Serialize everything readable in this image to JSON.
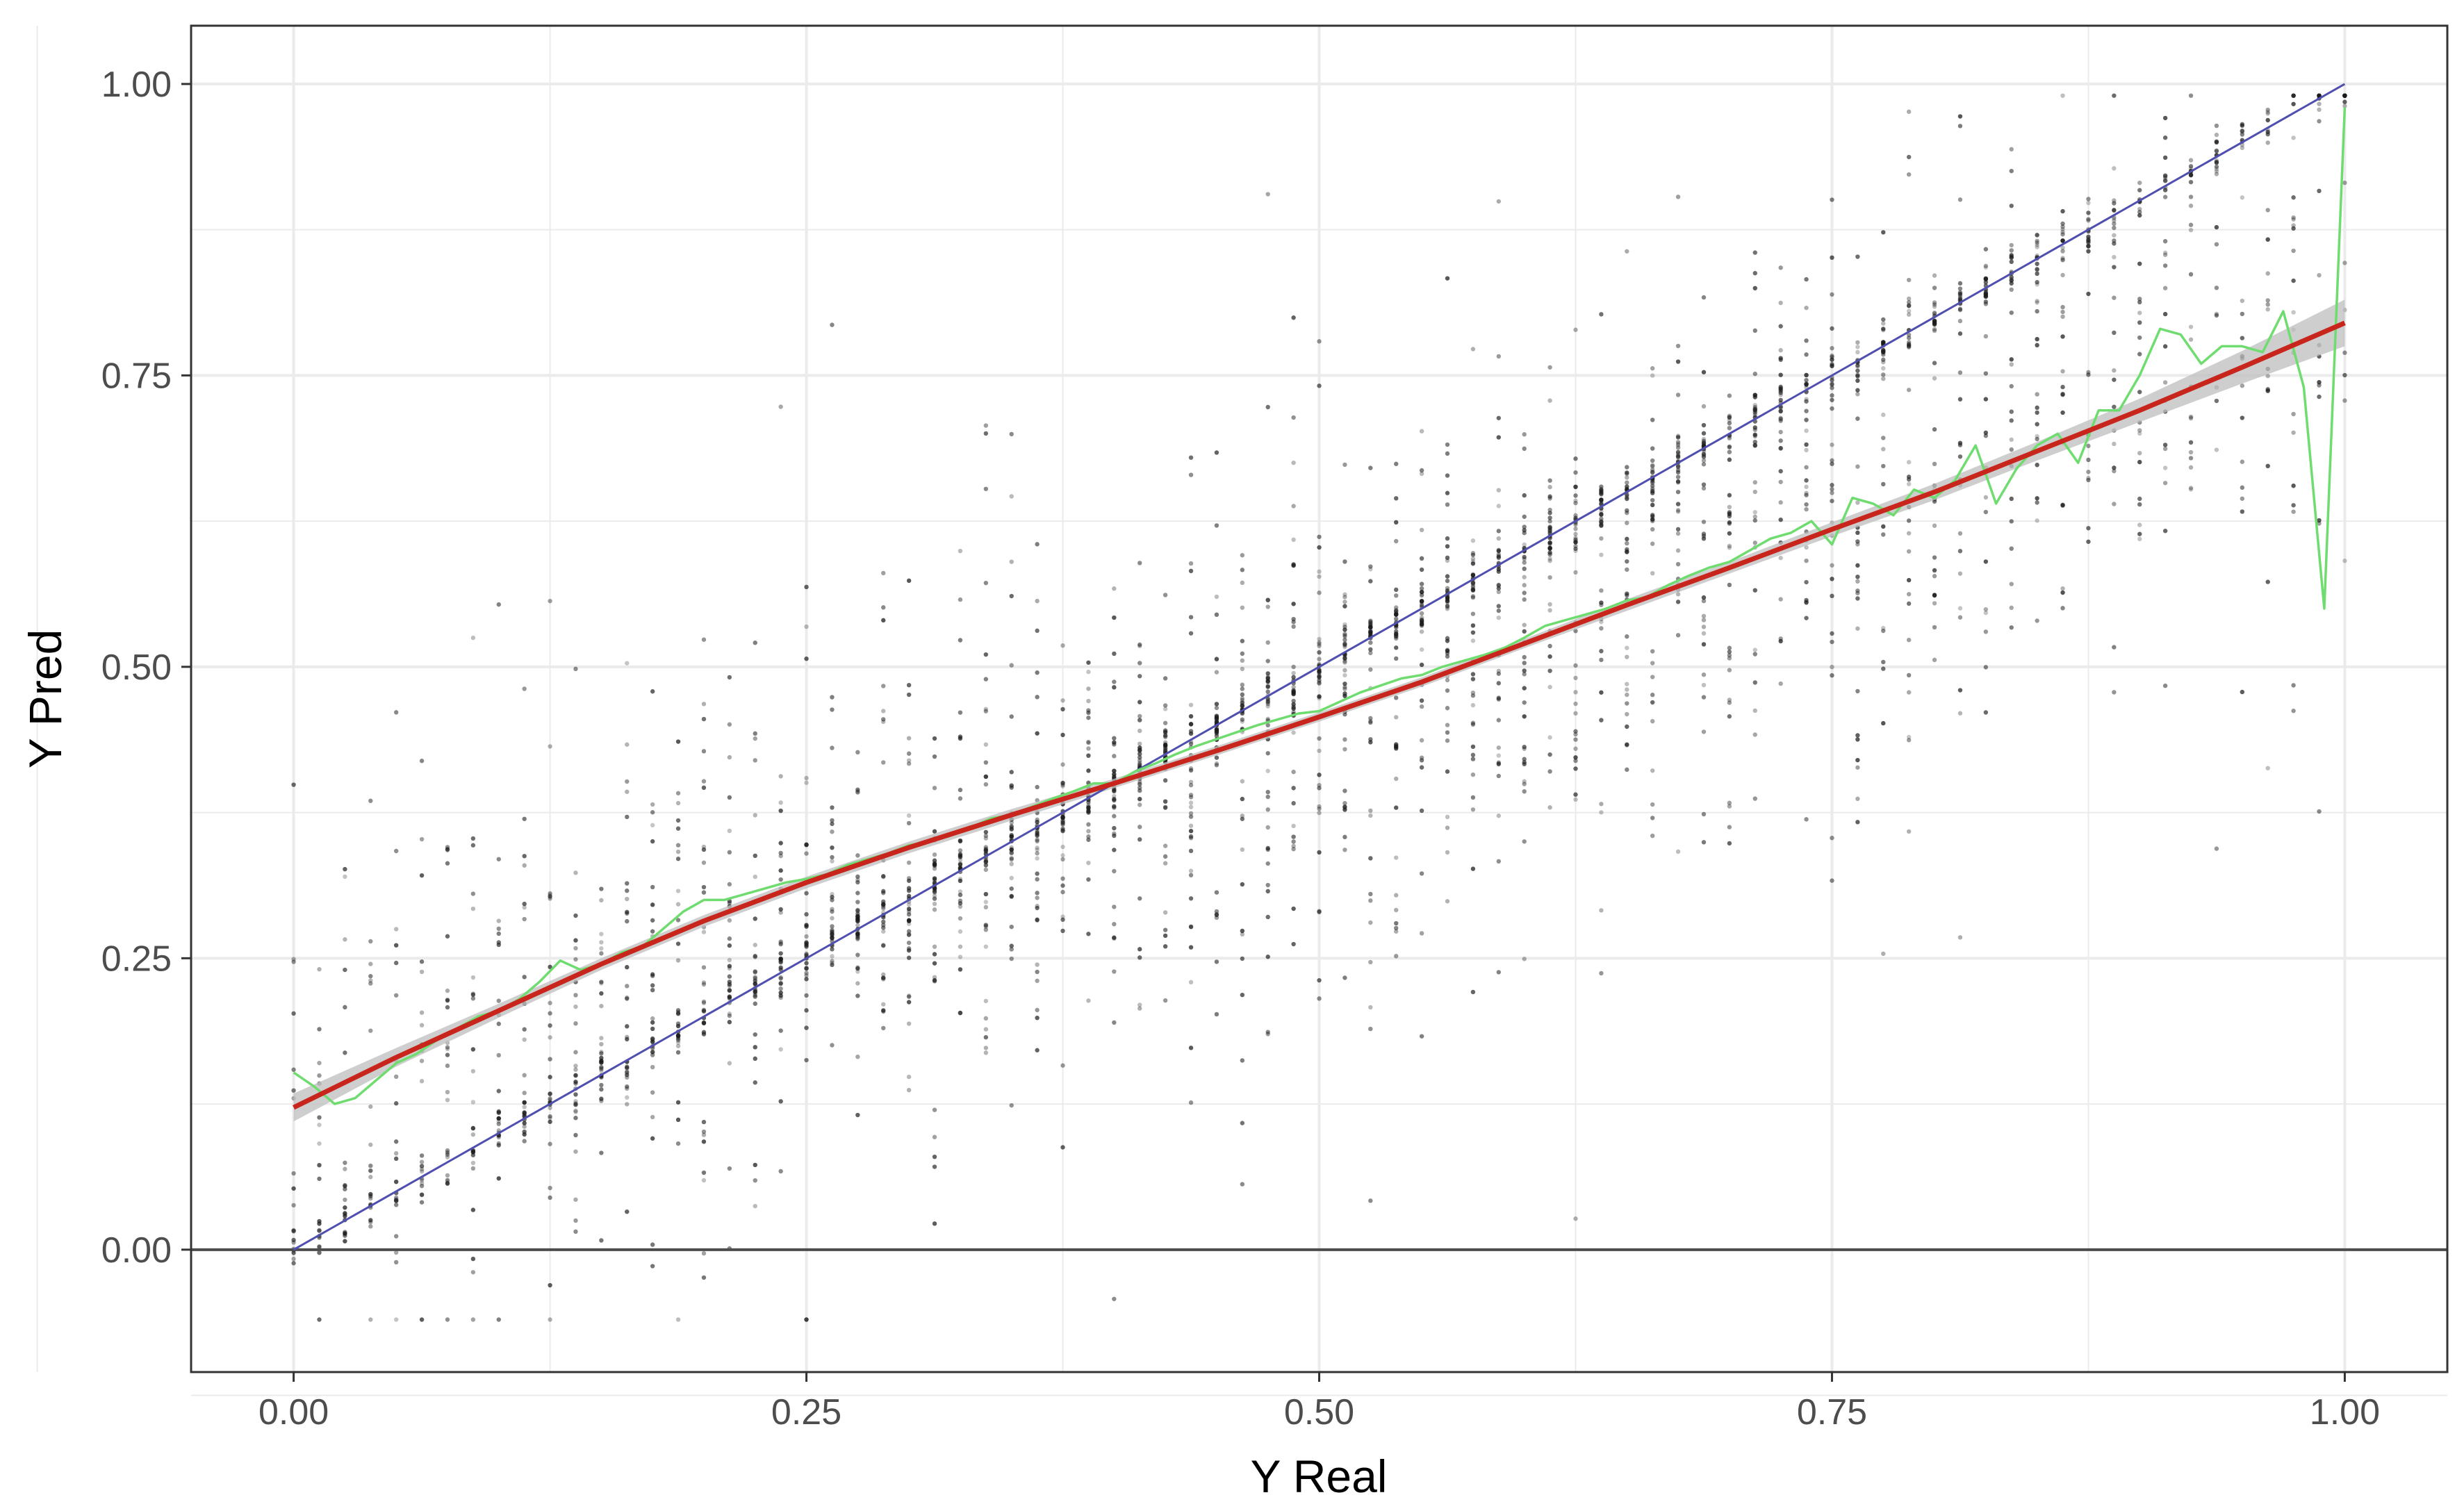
{
  "chart_data": {
    "type": "scatter",
    "title": "",
    "xlabel": "Y Real",
    "ylabel": "Y Pred",
    "xlim": [
      -0.05,
      1.05
    ],
    "ylim": [
      -0.105,
      1.05
    ],
    "x_ticks": [
      0.0,
      0.25,
      0.5,
      0.75,
      1.0
    ],
    "x_tick_labels": [
      "0.00",
      "0.25",
      "0.50",
      "0.75",
      "1.00"
    ],
    "y_ticks": [
      0.0,
      0.25,
      0.5,
      0.75,
      1.0
    ],
    "y_tick_labels": [
      "0.00",
      "0.25",
      "0.50",
      "0.75",
      "1.00"
    ],
    "grid": true,
    "legend": "none",
    "colors": {
      "points": "#1a1a1a",
      "identity_line": "#4f4fb0",
      "smooth_line": "#c8251c",
      "smooth_band": "#bdbdbd",
      "binned_mean_line": "#6fdc6f",
      "zero_line": "#4d4d4d",
      "grid": "#ebebeb",
      "panel_border": "#333333"
    },
    "reference_lines": [
      {
        "kind": "identity",
        "slope": 1,
        "intercept": 0,
        "x_range": [
          0,
          1
        ]
      },
      {
        "kind": "horizontal",
        "y": 0
      }
    ],
    "smooth_fit": {
      "x": [
        0.0,
        0.05,
        0.1,
        0.15,
        0.2,
        0.25,
        0.3,
        0.35,
        0.4,
        0.45,
        0.5,
        0.55,
        0.6,
        0.65,
        0.7,
        0.75,
        0.8,
        0.85,
        0.9,
        0.95,
        1.0
      ],
      "y": [
        0.122,
        0.165,
        0.205,
        0.245,
        0.282,
        0.315,
        0.345,
        0.373,
        0.4,
        0.428,
        0.457,
        0.487,
        0.52,
        0.553,
        0.585,
        0.618,
        0.65,
        0.685,
        0.72,
        0.757,
        0.795
      ],
      "band_halfwidth": [
        0.012,
        0.008,
        0.006,
        0.005,
        0.005,
        0.005,
        0.005,
        0.005,
        0.004,
        0.004,
        0.004,
        0.004,
        0.004,
        0.005,
        0.005,
        0.006,
        0.007,
        0.008,
        0.01,
        0.014,
        0.02
      ]
    },
    "binned_mean": {
      "x": [
        0.0,
        0.01,
        0.02,
        0.03,
        0.04,
        0.05,
        0.06,
        0.07,
        0.08,
        0.09,
        0.1,
        0.11,
        0.12,
        0.13,
        0.14,
        0.15,
        0.16,
        0.17,
        0.18,
        0.19,
        0.2,
        0.21,
        0.22,
        0.23,
        0.24,
        0.25,
        0.26,
        0.27,
        0.28,
        0.29,
        0.3,
        0.31,
        0.32,
        0.33,
        0.34,
        0.35,
        0.36,
        0.37,
        0.38,
        0.39,
        0.4,
        0.41,
        0.42,
        0.43,
        0.44,
        0.45,
        0.46,
        0.47,
        0.48,
        0.49,
        0.5,
        0.51,
        0.52,
        0.53,
        0.54,
        0.55,
        0.56,
        0.57,
        0.58,
        0.59,
        0.6,
        0.61,
        0.62,
        0.63,
        0.64,
        0.65,
        0.66,
        0.67,
        0.68,
        0.69,
        0.7,
        0.71,
        0.72,
        0.73,
        0.74,
        0.75,
        0.76,
        0.77,
        0.78,
        0.79,
        0.8,
        0.81,
        0.82,
        0.83,
        0.84,
        0.85,
        0.86,
        0.87,
        0.88,
        0.89,
        0.9,
        0.91,
        0.92,
        0.93,
        0.94,
        0.95,
        0.96,
        0.97,
        0.98,
        0.99,
        1.0
      ],
      "y": [
        0.152,
        0.14,
        0.125,
        0.13,
        0.145,
        0.16,
        0.168,
        0.18,
        0.19,
        0.2,
        0.205,
        0.215,
        0.23,
        0.248,
        0.24,
        0.245,
        0.255,
        0.26,
        0.275,
        0.29,
        0.3,
        0.3,
        0.305,
        0.31,
        0.315,
        0.318,
        0.322,
        0.33,
        0.335,
        0.34,
        0.347,
        0.35,
        0.355,
        0.362,
        0.37,
        0.373,
        0.38,
        0.387,
        0.393,
        0.4,
        0.4,
        0.41,
        0.417,
        0.425,
        0.432,
        0.438,
        0.444,
        0.45,
        0.455,
        0.46,
        0.462,
        0.47,
        0.478,
        0.484,
        0.49,
        0.493,
        0.5,
        0.505,
        0.51,
        0.516,
        0.525,
        0.535,
        0.54,
        0.545,
        0.55,
        0.557,
        0.56,
        0.57,
        0.578,
        0.585,
        0.59,
        0.6,
        0.61,
        0.615,
        0.625,
        0.605,
        0.645,
        0.64,
        0.63,
        0.652,
        0.645,
        0.66,
        0.69,
        0.64,
        0.67,
        0.69,
        0.7,
        0.675,
        0.72,
        0.72,
        0.75,
        0.79,
        0.785,
        0.76,
        0.775,
        0.775,
        0.77,
        0.805,
        0.74,
        0.55,
        0.98
      ]
    }
  }
}
